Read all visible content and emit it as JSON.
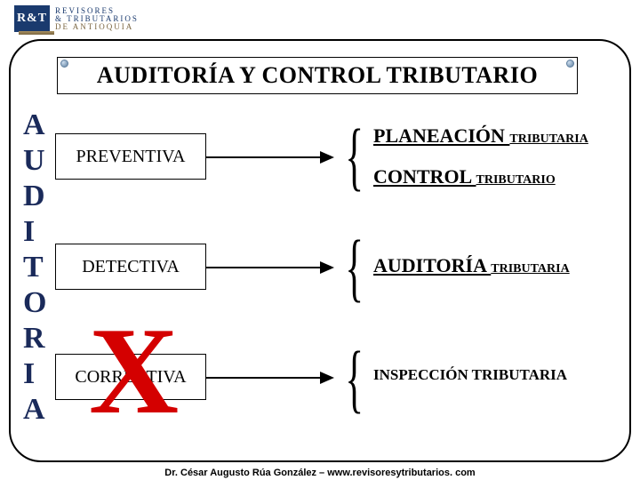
{
  "logo": {
    "mark": "R&T",
    "line1": "REVISORES",
    "line2": "& TRIBUTARIOS",
    "line3": "DE ANTIOQUIA"
  },
  "title": "AUDITORÍA Y CONTROL TRIBUTARIO",
  "vertical_word": [
    "A",
    "U",
    "D",
    "I",
    "T",
    "O",
    "R",
    "I",
    "A"
  ],
  "categories": {
    "c1": "PREVENTIVA",
    "c2": "DETECTIVA",
    "c3": "CORRECTIVA"
  },
  "big_x": "X",
  "outputs": {
    "o1_big": "PLANEACIÓN ",
    "o1_small": "TRIBUTARIA",
    "o2_big": "CONTROL ",
    "o2_small": "TRIBUTARIO",
    "o3_big": "AUDITORÍA ",
    "o3_small": "TRIBUTARIA",
    "o4": "INSPECCIÓN TRIBUTARIA"
  },
  "footer": "Dr. César Augusto Rúa González – www.revisoresytributarios. com",
  "colors": {
    "frame": "#000000",
    "accent_blue": "#1a3a6e",
    "vertical_text": "#1a2a5a",
    "x_red": "#d40000",
    "background": "#ffffff"
  }
}
